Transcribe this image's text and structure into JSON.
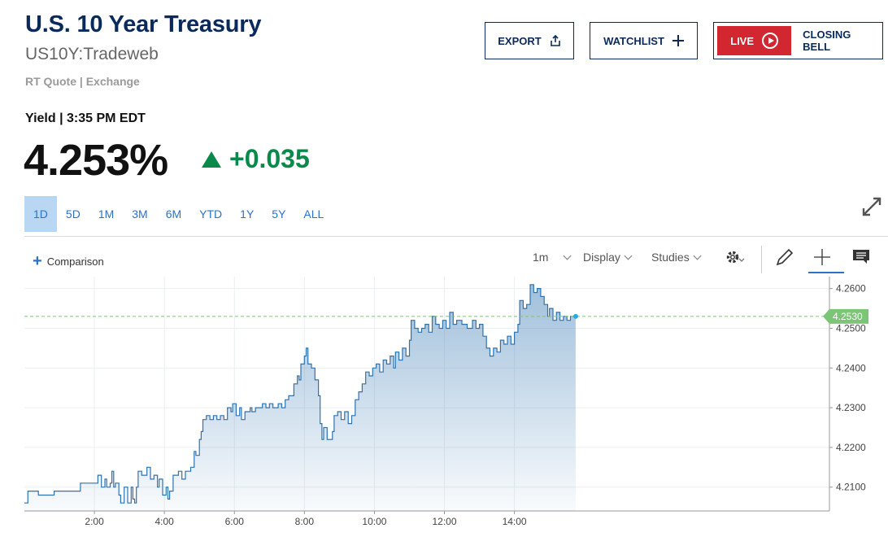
{
  "header": {
    "title": "U.S. 10 Year Treasury",
    "symbol": "US10Y:Tradeweb",
    "quote_source": "RT Quote | Exchange",
    "buttons": {
      "export": "EXPORT",
      "watchlist": "WATCHLIST",
      "live": "LIVE",
      "closing_bell": "CLOSING BELL"
    }
  },
  "quote": {
    "label": "Yield | 3:35 PM EDT",
    "price": "4.253%",
    "change": "+0.035",
    "change_color": "#0a8a4a"
  },
  "ranges": [
    "1D",
    "5D",
    "1M",
    "3M",
    "6M",
    "YTD",
    "1Y",
    "5Y",
    "ALL"
  ],
  "active_range": "1D",
  "toolbar": {
    "comparison": "Comparison",
    "interval": "1m",
    "display": "Display",
    "studies": "Studies",
    "icons": [
      "gear-icon",
      "pencil-icon",
      "crosshair-icon",
      "comment-icon"
    ]
  },
  "colors": {
    "brand": "#0b2a5c",
    "accent": "#2b73c7",
    "live": "#d22630",
    "line": "#2e73b0",
    "last_price": "#7cc576"
  },
  "chart_data": {
    "type": "area",
    "x_unit": "hour",
    "xlim": [
      0,
      23
    ],
    "ylim": [
      4.204,
      4.263
    ],
    "x_ticks": [
      2,
      4,
      6,
      8,
      10,
      12,
      14
    ],
    "x_tick_labels": [
      "2:00",
      "4:00",
      "6:00",
      "8:00",
      "10:00",
      "12:00",
      "14:00"
    ],
    "y_ticks": [
      4.21,
      4.22,
      4.23,
      4.24,
      4.25,
      4.26
    ],
    "y_tick_labels": [
      "4.2100",
      "4.2200",
      "4.2300",
      "4.2400",
      "4.2500",
      "4.2600"
    ],
    "last_price_label": "4.2530",
    "last_value": 4.253,
    "grid": true,
    "series": [
      {
        "points": [
          [
            0.0,
            4.206
          ],
          [
            0.1,
            4.209
          ],
          [
            0.35,
            4.209
          ],
          [
            0.4,
            4.208
          ],
          [
            0.8,
            4.208
          ],
          [
            0.85,
            4.209
          ],
          [
            1.55,
            4.209
          ],
          [
            1.6,
            4.211
          ],
          [
            2.05,
            4.211
          ],
          [
            2.1,
            4.213
          ],
          [
            2.2,
            4.21
          ],
          [
            2.3,
            4.212
          ],
          [
            2.35,
            4.21
          ],
          [
            2.45,
            4.211
          ],
          [
            2.5,
            4.214
          ],
          [
            2.55,
            4.21
          ],
          [
            2.6,
            4.211
          ],
          [
            2.7,
            4.208
          ],
          [
            2.75,
            4.206
          ],
          [
            2.85,
            4.21
          ],
          [
            2.95,
            4.206
          ],
          [
            3.05,
            4.21
          ],
          [
            3.1,
            4.207
          ],
          [
            3.15,
            4.206
          ],
          [
            3.2,
            4.21
          ],
          [
            3.25,
            4.214
          ],
          [
            3.35,
            4.213
          ],
          [
            3.5,
            4.215
          ],
          [
            3.6,
            4.212
          ],
          [
            3.7,
            4.213
          ],
          [
            3.8,
            4.21
          ],
          [
            3.85,
            4.212
          ],
          [
            3.95,
            4.208
          ],
          [
            4.05,
            4.21
          ],
          [
            4.1,
            4.207
          ],
          [
            4.15,
            4.209
          ],
          [
            4.25,
            4.213
          ],
          [
            4.4,
            4.214
          ],
          [
            4.5,
            4.212
          ],
          [
            4.6,
            4.214
          ],
          [
            4.75,
            4.215
          ],
          [
            4.85,
            4.219
          ],
          [
            4.9,
            4.218
          ],
          [
            5.0,
            4.222
          ],
          [
            5.05,
            4.224
          ],
          [
            5.1,
            4.227
          ],
          [
            5.2,
            4.228
          ],
          [
            5.3,
            4.227
          ],
          [
            5.4,
            4.228
          ],
          [
            5.5,
            4.227
          ],
          [
            5.6,
            4.228
          ],
          [
            5.7,
            4.227
          ],
          [
            5.8,
            4.23
          ],
          [
            5.9,
            4.229
          ],
          [
            5.95,
            4.231
          ],
          [
            6.05,
            4.228
          ],
          [
            6.15,
            4.23
          ],
          [
            6.2,
            4.227
          ],
          [
            6.3,
            4.229
          ],
          [
            6.45,
            4.23
          ],
          [
            6.5,
            4.229
          ],
          [
            6.6,
            4.23
          ],
          [
            6.7,
            4.23
          ],
          [
            6.8,
            4.231
          ],
          [
            6.9,
            4.23
          ],
          [
            7.0,
            4.231
          ],
          [
            7.1,
            4.23
          ],
          [
            7.25,
            4.231
          ],
          [
            7.35,
            4.23
          ],
          [
            7.45,
            4.232
          ],
          [
            7.55,
            4.233
          ],
          [
            7.7,
            4.236
          ],
          [
            7.8,
            4.238
          ],
          [
            7.85,
            4.237
          ],
          [
            7.9,
            4.241
          ],
          [
            8.0,
            4.243
          ],
          [
            8.05,
            4.245
          ],
          [
            8.1,
            4.241
          ],
          [
            8.2,
            4.24
          ],
          [
            8.3,
            4.237
          ],
          [
            8.4,
            4.233
          ],
          [
            8.45,
            4.226
          ],
          [
            8.5,
            4.222
          ],
          [
            8.55,
            4.225
          ],
          [
            8.65,
            4.222
          ],
          [
            8.8,
            4.224
          ],
          [
            8.85,
            4.228
          ],
          [
            8.95,
            4.229
          ],
          [
            9.05,
            4.227
          ],
          [
            9.15,
            4.229
          ],
          [
            9.25,
            4.226
          ],
          [
            9.35,
            4.228
          ],
          [
            9.45,
            4.232
          ],
          [
            9.55,
            4.234
          ],
          [
            9.65,
            4.236
          ],
          [
            9.75,
            4.239
          ],
          [
            9.85,
            4.238
          ],
          [
            9.95,
            4.24
          ],
          [
            10.05,
            4.241
          ],
          [
            10.15,
            4.239
          ],
          [
            10.25,
            4.242
          ],
          [
            10.35,
            4.241
          ],
          [
            10.45,
            4.243
          ],
          [
            10.55,
            4.24
          ],
          [
            10.6,
            4.244
          ],
          [
            10.7,
            4.242
          ],
          [
            10.8,
            4.245
          ],
          [
            10.9,
            4.243
          ],
          [
            11.0,
            4.247
          ],
          [
            11.05,
            4.252
          ],
          [
            11.15,
            4.25
          ],
          [
            11.25,
            4.249
          ],
          [
            11.35,
            4.25
          ],
          [
            11.45,
            4.251
          ],
          [
            11.55,
            4.249
          ],
          [
            11.65,
            4.253
          ],
          [
            11.75,
            4.251
          ],
          [
            11.85,
            4.25
          ],
          [
            11.95,
            4.252
          ],
          [
            12.05,
            4.25
          ],
          [
            12.15,
            4.254
          ],
          [
            12.25,
            4.251
          ],
          [
            12.35,
            4.252
          ],
          [
            12.5,
            4.251
          ],
          [
            12.65,
            4.25
          ],
          [
            12.8,
            4.252
          ],
          [
            12.9,
            4.25
          ],
          [
            13.0,
            4.251
          ],
          [
            13.1,
            4.248
          ],
          [
            13.2,
            4.245
          ],
          [
            13.3,
            4.243
          ],
          [
            13.4,
            4.245
          ],
          [
            13.5,
            4.244
          ],
          [
            13.6,
            4.247
          ],
          [
            13.7,
            4.246
          ],
          [
            13.8,
            4.248
          ],
          [
            13.9,
            4.246
          ],
          [
            14.0,
            4.249
          ],
          [
            14.1,
            4.251
          ],
          [
            14.15,
            4.257
          ],
          [
            14.25,
            4.255
          ],
          [
            14.35,
            4.256
          ],
          [
            14.45,
            4.261
          ],
          [
            14.55,
            4.259
          ],
          [
            14.65,
            4.26
          ],
          [
            14.75,
            4.258
          ],
          [
            14.85,
            4.256
          ],
          [
            14.95,
            4.253
          ],
          [
            15.0,
            4.255
          ],
          [
            15.1,
            4.252
          ],
          [
            15.2,
            4.254
          ],
          [
            15.3,
            4.252
          ],
          [
            15.4,
            4.253
          ],
          [
            15.5,
            4.252
          ],
          [
            15.6,
            4.253
          ],
          [
            15.75,
            4.253
          ]
        ]
      }
    ]
  }
}
